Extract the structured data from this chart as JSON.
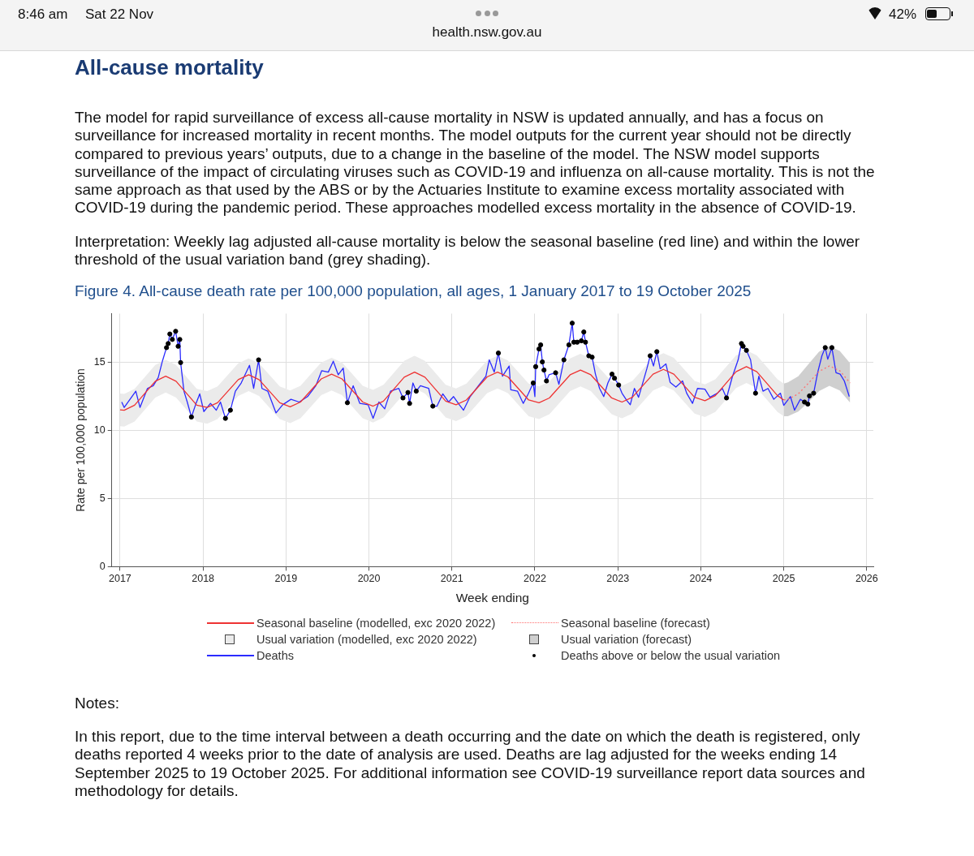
{
  "chart_data": {
    "type": "line",
    "title": "Figure 4. All-cause death rate per 100,000 population, all ages, 1 January 2017 to 19 October 2025",
    "xlabel": "Week ending",
    "ylabel": "Rate per 100,000 population",
    "annotations": [
      "8:46 am",
      "Sat 22 Nov",
      "health.nsw.gov.au",
      "42%",
      "All-cause mortality",
      "The model for rapid surveillance of excess all-cause mortality in NSW is updated annually, and has a focus on surveillance for increased mortality in recent months. The model outputs for the current year should not be directly compared to previous years’ outputs, due to a change in the baseline of the model. The NSW model supports surveillance of the impact of circulating viruses such as COVID-19 and influenza on all-cause mortality. This is not the same approach as that used by the ABS or by the Actuaries Institute to examine excess mortality associated with COVID-19 during the pandemic period. These approaches modelled excess mortality in the absence of COVID-19.",
      "Interpretation: Weekly lag adjusted all-cause mortality is below the seasonal baseline (red line) and within the lower threshold of the usual variation band (grey shading).",
      "Notes:",
      "In this report, due to the time interval between a death occurring and the date on which the death is registered, only deaths reported 4 weeks prior to the date of analysis are used. Deaths are lag adjusted for the weeks ending 14 September 2025 to 19 October 2025. For additional information see COVID-19 surveillance report data sources and methodology for details.",
      "Usual variation (modelled, exc 2020 2022)",
      "Usual variation (forecast)"
    ],
    "xlim": [
      2016.9,
      2026.08
    ],
    "xticks": [
      2017,
      2018,
      2019,
      2020,
      2021,
      2022,
      2023,
      2024,
      2025,
      2026
    ],
    "ylim": [
      0,
      18.6
    ],
    "yticks": [
      0,
      5,
      10,
      15
    ],
    "grid": true,
    "legend": "bottom",
    "series": [
      {
        "name": "Seasonal baseline (modelled, exc 2020 2022)",
        "type": "line",
        "color": "#ee3333",
        "line_style": "solid",
        "marker": "none",
        "x": [
          2017,
          2017.05,
          2017.175,
          2017.3,
          2017.425,
          2017.55,
          2017.675,
          2017.8,
          2017.925,
          2018.05,
          2018.175,
          2018.3,
          2018.425,
          2018.55,
          2018.675,
          2018.8,
          2018.925,
          2019.05,
          2019.175,
          2019.3,
          2019.425,
          2019.55,
          2019.675,
          2019.8,
          2019.925,
          2020.05,
          2020.175,
          2020.3,
          2020.425,
          2020.55,
          2020.675,
          2020.8,
          2020.925,
          2021.05,
          2021.175,
          2021.3,
          2021.425,
          2021.55,
          2021.675,
          2021.8,
          2021.925,
          2022.05,
          2022.175,
          2022.3,
          2022.425,
          2022.55,
          2022.675,
          2022.8,
          2022.925,
          2023.05,
          2023.175,
          2023.3,
          2023.425,
          2023.55,
          2023.675,
          2023.8,
          2023.925,
          2024.05,
          2024.175,
          2024.3,
          2024.425,
          2024.55,
          2024.675,
          2024.8,
          2024.925,
          2025
        ],
        "values": [
          11.52,
          11.5,
          11.87,
          12.75,
          13.63,
          14.0,
          13.63,
          12.75,
          11.87,
          11.7,
          12.05,
          12.9,
          13.75,
          14.1,
          13.75,
          12.9,
          12.05,
          11.75,
          12.1,
          12.95,
          13.8,
          14.15,
          13.8,
          12.95,
          12.1,
          11.8,
          12.17,
          13.05,
          13.93,
          14.3,
          13.93,
          13.05,
          12.17,
          11.9,
          12.25,
          13.1,
          13.95,
          14.3,
          13.95,
          13.1,
          12.25,
          12.05,
          12.4,
          13.25,
          14.1,
          14.45,
          14.1,
          13.25,
          12.4,
          12.1,
          12.45,
          13.3,
          14.15,
          14.5,
          14.15,
          13.3,
          12.45,
          12.2,
          12.57,
          13.45,
          14.33,
          14.7,
          14.33,
          13.45,
          12.57,
          12.25
        ],
        "upper": [
          12.72,
          12.7,
          13.07,
          13.95,
          14.83,
          15.2,
          14.83,
          13.95,
          13.07,
          12.9,
          13.25,
          14.1,
          14.95,
          15.3,
          14.95,
          14.1,
          13.25,
          12.95,
          13.3,
          14.15,
          15.0,
          15.35,
          15.0,
          14.15,
          13.3,
          13.0,
          13.37,
          14.25,
          15.13,
          15.5,
          15.13,
          14.25,
          13.37,
          13.1,
          13.45,
          14.3,
          15.15,
          15.5,
          15.15,
          14.3,
          13.45,
          13.25,
          13.6,
          14.45,
          15.3,
          15.65,
          15.3,
          14.45,
          13.6,
          13.3,
          13.65,
          14.5,
          15.35,
          15.7,
          15.35,
          14.5,
          13.65,
          13.4,
          13.77,
          14.65,
          15.53,
          15.9,
          15.53,
          14.65,
          13.77,
          13.45
        ],
        "lower": [
          10.32,
          10.3,
          10.67,
          11.55,
          12.43,
          12.8,
          12.43,
          11.55,
          10.67,
          10.5,
          10.85,
          11.7,
          12.55,
          12.9,
          12.55,
          11.7,
          10.85,
          10.55,
          10.9,
          11.75,
          12.6,
          12.95,
          12.6,
          11.75,
          10.9,
          10.6,
          10.97,
          11.85,
          12.73,
          13.1,
          12.73,
          11.85,
          10.97,
          10.7,
          11.05,
          11.9,
          12.75,
          13.1,
          12.75,
          11.9,
          11.05,
          10.85,
          11.2,
          12.05,
          12.9,
          13.25,
          12.9,
          12.05,
          11.2,
          10.9,
          11.25,
          12.1,
          12.95,
          13.3,
          12.95,
          12.1,
          11.25,
          11.0,
          11.37,
          12.25,
          13.13,
          13.5,
          13.13,
          12.25,
          11.37,
          11.05
        ]
      },
      {
        "name": "Seasonal baseline (forecast)",
        "type": "line",
        "color": "#ff7070",
        "line_style": "dotted",
        "marker": "none",
        "x": [
          2025,
          2025.05,
          2025.175,
          2025.3,
          2025.425,
          2025.55,
          2025.675,
          2025.8
        ],
        "values": [
          12.25,
          12.3,
          12.7,
          13.5,
          14.35,
          14.75,
          14.4,
          13.5
        ],
        "upper": [
          13.45,
          13.55,
          14.0,
          14.9,
          15.8,
          16.2,
          15.85,
          14.95
        ],
        "lower": [
          11.05,
          11.05,
          11.4,
          12.1,
          12.9,
          13.3,
          12.95,
          12.05
        ]
      },
      {
        "name": "Deaths",
        "color": "#2b2bff",
        "line_style": "solid",
        "marker": "none",
        "x": [
          2017.02,
          2017.05,
          2017.12,
          2017.19,
          2017.24,
          2017.33,
          2017.4,
          2017.46,
          2017.51,
          2017.56,
          2017.58,
          2017.6,
          2017.63,
          2017.67,
          2017.7,
          2017.72,
          2017.73,
          2017.77,
          2017.81,
          2017.86,
          2017.91,
          2017.96,
          2018.01,
          2018.09,
          2018.16,
          2018.21,
          2018.27,
          2018.33,
          2018.39,
          2018.46,
          2018.56,
          2018.61,
          2018.67,
          2018.71,
          2018.78,
          2018.88,
          2018.96,
          2019.06,
          2019.16,
          2019.26,
          2019.36,
          2019.43,
          2019.51,
          2019.57,
          2019.63,
          2019.69,
          2019.74,
          2019.81,
          2019.89,
          2019.99,
          2020.05,
          2020.12,
          2020.19,
          2020.26,
          2020.36,
          2020.41,
          2020.47,
          2020.49,
          2020.53,
          2020.57,
          2020.62,
          2020.72,
          2020.77,
          2020.82,
          2020.89,
          2020.96,
          2021.02,
          2021.09,
          2021.14,
          2021.22,
          2021.32,
          2021.41,
          2021.45,
          2021.51,
          2021.56,
          2021.61,
          2021.69,
          2021.71,
          2021.79,
          2021.86,
          2021.92,
          2021.98,
          2022.0,
          2022.01,
          2022.05,
          2022.07,
          2022.09,
          2022.11,
          2022.14,
          2022.17,
          2022.25,
          2022.29,
          2022.35,
          2022.41,
          2022.45,
          2022.47,
          2022.51,
          2022.56,
          2022.59,
          2022.61,
          2022.65,
          2022.69,
          2022.73,
          2022.78,
          2022.83,
          2022.88,
          2022.93,
          2022.96,
          2023.01,
          2023.05,
          2023.11,
          2023.15,
          2023.2,
          2023.25,
          2023.31,
          2023.35,
          2023.39,
          2023.43,
          2023.47,
          2023.51,
          2023.58,
          2023.63,
          2023.7,
          2023.78,
          2023.83,
          2023.9,
          2023.96,
          2024.05,
          2024.11,
          2024.2,
          2024.26,
          2024.31,
          2024.38,
          2024.45,
          2024.49,
          2024.51,
          2024.55,
          2024.6,
          2024.63,
          2024.66,
          2024.7,
          2024.75,
          2024.81,
          2024.88,
          2024.96,
          2025.0,
          2025.08,
          2025.13,
          2025.2,
          2025.25,
          2025.29,
          2025.31,
          2025.36,
          2025.41,
          2025.46,
          2025.5,
          2025.53,
          2025.58,
          2025.63,
          2025.68,
          2025.73,
          2025.79
        ],
        "values": [
          12.1,
          11.7,
          12.3,
          12.9,
          11.7,
          13.1,
          13.3,
          13.9,
          15.1,
          16.1,
          16.4,
          17.1,
          16.7,
          17.3,
          16.2,
          16.7,
          15.0,
          12.9,
          12.1,
          11.0,
          11.9,
          12.7,
          11.4,
          12.0,
          11.5,
          12.1,
          10.9,
          11.5,
          12.9,
          13.5,
          14.8,
          13.1,
          15.2,
          13.1,
          12.9,
          11.3,
          11.9,
          12.3,
          12.1,
          12.5,
          13.3,
          14.4,
          14.3,
          15.1,
          14.1,
          14.6,
          12.05,
          13.3,
          12.0,
          11.9,
          10.9,
          12.1,
          11.6,
          12.9,
          13.1,
          12.4,
          12.8,
          12.0,
          13.5,
          12.9,
          13.3,
          13.1,
          11.8,
          11.8,
          12.7,
          12.1,
          12.5,
          11.9,
          11.5,
          12.5,
          13.3,
          14.0,
          15.2,
          14.3,
          15.7,
          14.0,
          14.75,
          13.0,
          12.9,
          12.0,
          12.7,
          13.5,
          12.5,
          14.7,
          16.0,
          16.3,
          15.05,
          14.45,
          13.65,
          14.1,
          14.25,
          13.4,
          15.2,
          16.3,
          17.9,
          16.5,
          16.5,
          16.6,
          17.25,
          16.5,
          15.5,
          15.4,
          14.15,
          13.1,
          12.5,
          13.5,
          14.15,
          13.85,
          13.35,
          12.75,
          12.2,
          11.9,
          13.1,
          12.45,
          13.7,
          14.55,
          15.5,
          14.75,
          15.8,
          14.55,
          14.9,
          13.55,
          13.2,
          13.65,
          12.75,
          12.0,
          13.1,
          13.05,
          12.45,
          12.75,
          13.1,
          12.4,
          13.95,
          15.2,
          16.4,
          16.2,
          15.9,
          15.2,
          13.95,
          12.75,
          14.0,
          12.9,
          13.1,
          12.3,
          12.75,
          11.85,
          12.5,
          11.5,
          12.3,
          12.1,
          11.95,
          12.55,
          12.75,
          14.3,
          15.5,
          16.1,
          15.25,
          16.1,
          14.25,
          14.15,
          13.65,
          12.5
        ]
      },
      {
        "name": "Deaths above or below the usual variation",
        "type": "scatter",
        "color": "#000000",
        "marker": "circle",
        "x": [
          2017.56,
          2017.58,
          2017.6,
          2017.63,
          2017.67,
          2017.7,
          2017.72,
          2017.73,
          2017.86,
          2018.27,
          2018.33,
          2018.67,
          2019.74,
          2020.41,
          2020.47,
          2020.49,
          2020.57,
          2020.77,
          2021.56,
          2021.98,
          2022.01,
          2022.05,
          2022.07,
          2022.09,
          2022.11,
          2022.14,
          2022.25,
          2022.35,
          2022.41,
          2022.45,
          2022.47,
          2022.51,
          2022.56,
          2022.59,
          2022.61,
          2022.65,
          2022.69,
          2022.93,
          2022.96,
          2023.01,
          2023.39,
          2023.47,
          2024.31,
          2024.49,
          2024.51,
          2024.55,
          2024.66,
          2025.25,
          2025.29,
          2025.31,
          2025.36,
          2025.5,
          2025.58
        ],
        "values": [
          16.1,
          16.4,
          17.1,
          16.7,
          17.3,
          16.2,
          16.7,
          15.0,
          11.0,
          10.9,
          11.5,
          15.2,
          12.05,
          12.4,
          12.8,
          12.0,
          12.9,
          11.8,
          15.7,
          13.5,
          14.7,
          16.0,
          16.3,
          15.05,
          14.45,
          13.65,
          14.25,
          15.2,
          16.3,
          17.9,
          16.5,
          16.5,
          16.6,
          17.25,
          16.5,
          15.5,
          15.4,
          14.15,
          13.85,
          13.35,
          15.5,
          15.8,
          12.4,
          16.4,
          16.2,
          15.9,
          12.75,
          12.1,
          11.95,
          12.55,
          12.75,
          16.1,
          16.1
        ]
      }
    ]
  }
}
